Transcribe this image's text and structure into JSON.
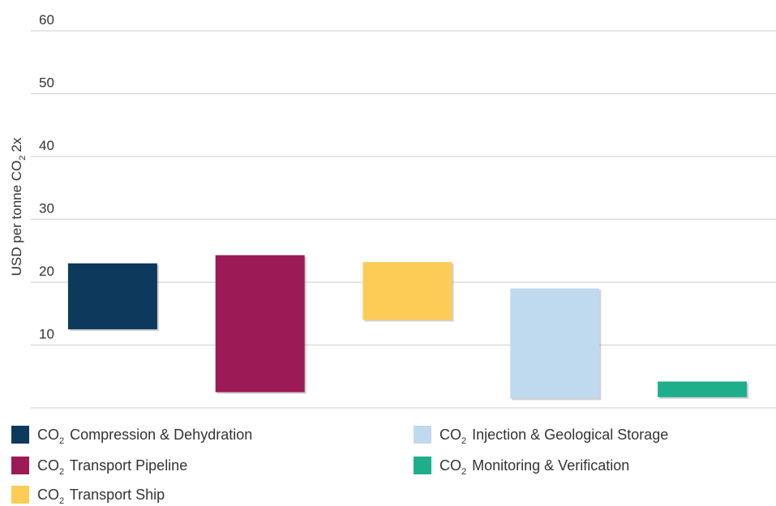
{
  "chart_data": {
    "type": "bar",
    "subtype": "floating-range",
    "ylabel_parts": [
      "USD per tonne CO",
      "2",
      "2x"
    ],
    "yticks": [
      10,
      20,
      30,
      40,
      50,
      60
    ],
    "ylim": [
      0,
      60
    ],
    "grid": true,
    "legend_position": "bottom",
    "series": [
      {
        "co": "CO",
        "sub": "2",
        "label": " Compression & Dehydration",
        "low": 12.5,
        "high": 23,
        "color": "#0d3a5c"
      },
      {
        "co": "CO",
        "sub": "2",
        "label": " Transport Pipeline",
        "low": 2.5,
        "high": 24.3,
        "color": "#9c1b56"
      },
      {
        "co": "CO",
        "sub": "2",
        "label": " Transport Ship",
        "low": 14,
        "high": 23.2,
        "color": "#fccc56"
      },
      {
        "co": "CO",
        "sub": "2",
        "label": " Injection & Geological Storage",
        "low": 1.5,
        "high": 19,
        "color": "#bfd9ee"
      },
      {
        "co": "CO",
        "sub": "2",
        "label": " Monitoring & Verification",
        "low": 1.7,
        "high": 4.2,
        "color": "#1fae8c"
      }
    ]
  }
}
